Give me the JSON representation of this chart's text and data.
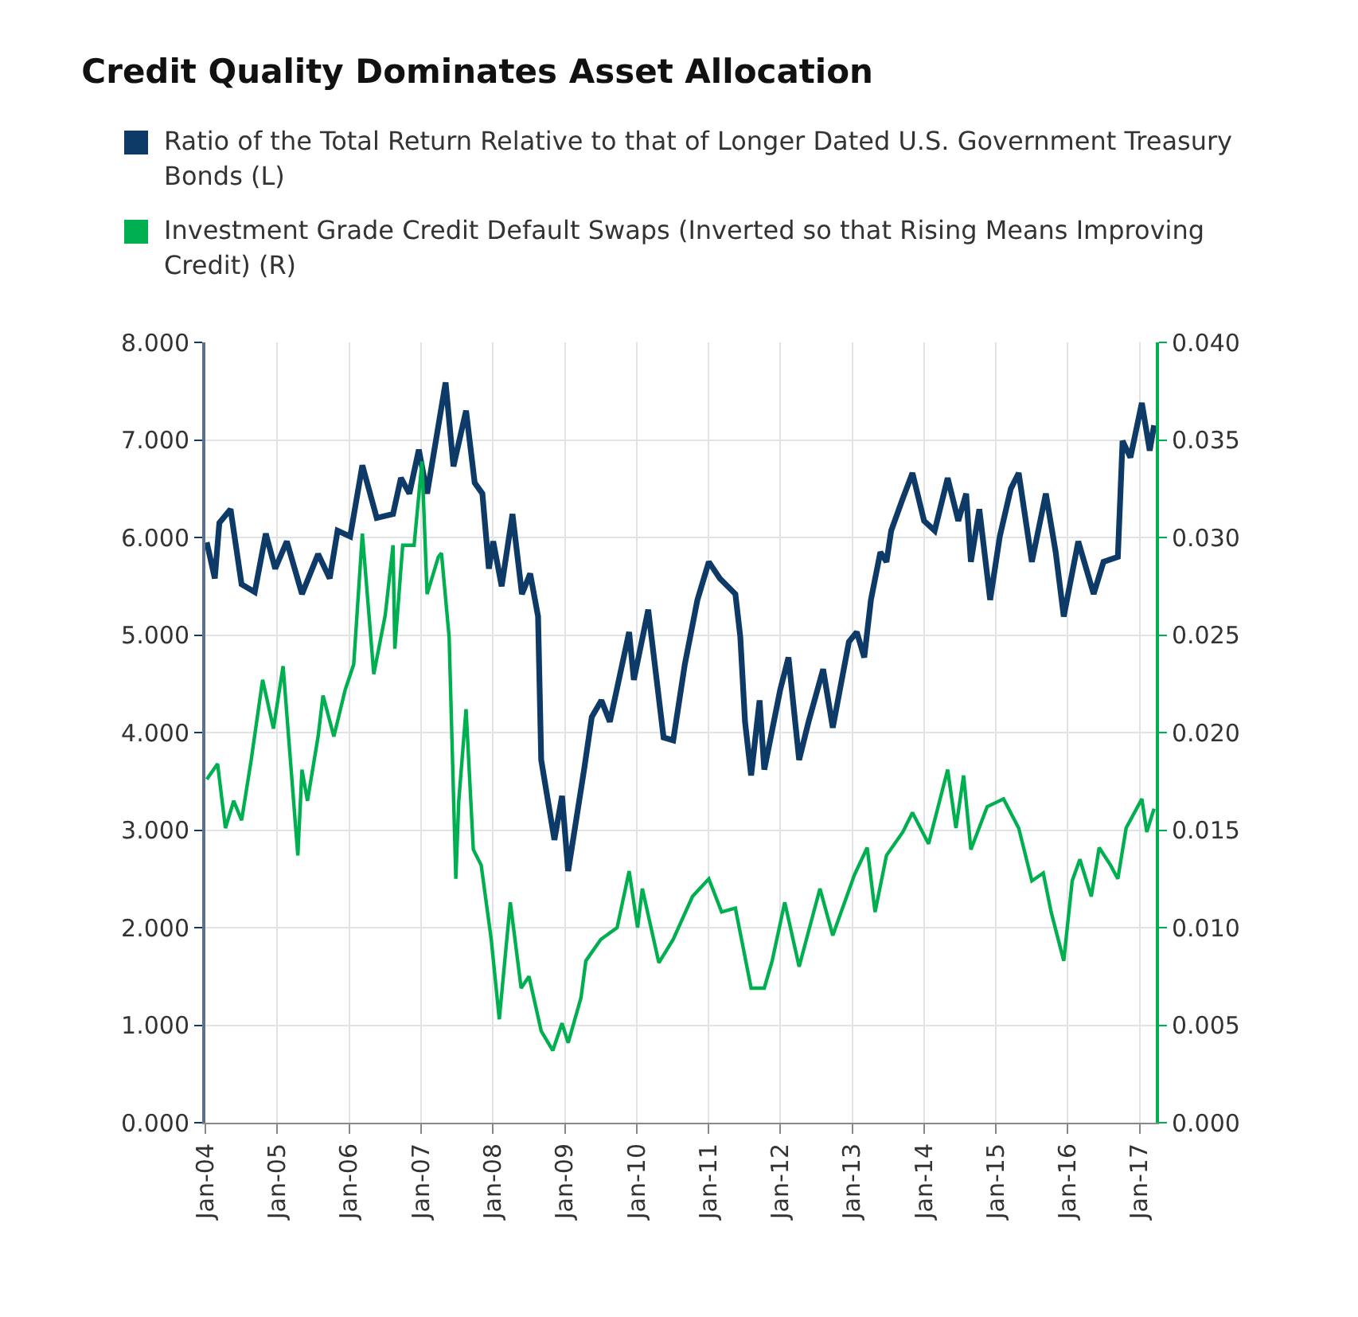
{
  "chart_data": {
    "type": "line",
    "title": "Credit Quality Dominates Asset Allocation",
    "xlim": [
      "2004-01-01",
      "2017-03-24"
    ],
    "xticks": [
      {
        "value": "2004-01-01",
        "label": "Jan-04"
      },
      {
        "value": "2005-01-01",
        "label": "Jan-05"
      },
      {
        "value": "2006-01-01",
        "label": "Jan-06"
      },
      {
        "value": "2007-01-01",
        "label": "Jan-07"
      },
      {
        "value": "2008-01-01",
        "label": "Jan-08"
      },
      {
        "value": "2009-01-01",
        "label": "Jan-09"
      },
      {
        "value": "2010-01-01",
        "label": "Jan-10"
      },
      {
        "value": "2011-01-01",
        "label": "Jan-11"
      },
      {
        "value": "2012-01-01",
        "label": "Jan-12"
      },
      {
        "value": "2013-01-01",
        "label": "Jan-13"
      },
      {
        "value": "2014-01-01",
        "label": "Jan-14"
      },
      {
        "value": "2015-01-01",
        "label": "Jan-15"
      },
      {
        "value": "2016-01-01",
        "label": "Jan-16"
      },
      {
        "value": "2017-01-01",
        "label": "Jan-17"
      }
    ],
    "ylim": [
      0,
      8
    ],
    "yticks": [
      {
        "value": 0,
        "label": "0.000"
      },
      {
        "value": 1,
        "label": "1.000"
      },
      {
        "value": 2,
        "label": "2.000"
      },
      {
        "value": 3,
        "label": "3.000"
      },
      {
        "value": 4,
        "label": "4.000"
      },
      {
        "value": 5,
        "label": "5.000"
      },
      {
        "value": 6,
        "label": "6.000"
      },
      {
        "value": 7,
        "label": "7.000"
      },
      {
        "value": 8,
        "label": "8.000"
      }
    ],
    "y2lim": [
      0,
      0.04
    ],
    "y2ticks": [
      {
        "value": 0,
        "label": "0.000"
      },
      {
        "value": 0.005,
        "label": "0.005"
      },
      {
        "value": 0.01,
        "label": "0.010"
      },
      {
        "value": 0.015,
        "label": "0.015"
      },
      {
        "value": 0.02,
        "label": "0.020"
      },
      {
        "value": 0.025,
        "label": "0.025"
      },
      {
        "value": 0.03,
        "label": "0.030"
      },
      {
        "value": 0.035,
        "label": "0.035"
      },
      {
        "value": 0.04,
        "label": "0.040"
      }
    ],
    "grid": true,
    "legend": "top",
    "series": [
      {
        "name": "Ratio of the Total Return Relative to that of Longer Dated U.S. Government Treasury Bonds (L)",
        "color": "#0d3a66",
        "x": [
          "2004-01-08",
          "2004-02-18",
          "2004-03-12",
          "2004-05-08",
          "2004-07-03",
          "2004-09-08",
          "2004-11-03",
          "2004-12-21",
          "2005-02-18",
          "2005-05-06",
          "2005-07-27",
          "2005-09-24",
          "2005-11-03",
          "2006-01-06",
          "2006-03-09",
          "2006-05-21",
          "2006-08-12",
          "2006-09-21",
          "2006-11-03",
          "2006-12-21",
          "2007-02-01",
          "2007-05-06",
          "2007-06-15",
          "2007-08-18",
          "2007-10-01",
          "2007-11-09",
          "2007-12-12",
          "2008-01-03",
          "2008-02-15",
          "2008-04-10",
          "2008-05-28",
          "2008-07-09",
          "2008-08-18",
          "2008-09-03",
          "2008-11-09",
          "2008-12-18",
          "2009-01-18",
          "2009-04-09",
          "2009-05-18",
          "2009-07-06",
          "2009-08-18",
          "2009-11-24",
          "2009-12-18",
          "2010-03-01",
          "2010-05-18",
          "2010-07-06",
          "2010-09-03",
          "2010-11-06",
          "2011-01-03",
          "2011-02-28",
          "2011-05-18",
          "2011-06-12",
          "2011-07-06",
          "2011-08-06",
          "2011-09-18",
          "2011-10-12",
          "2012-01-01",
          "2012-02-12",
          "2012-04-06",
          "2012-05-24",
          "2012-08-06",
          "2012-09-24",
          "2012-12-15",
          "2013-01-24",
          "2013-03-03",
          "2013-04-06",
          "2013-05-24",
          "2013-06-24",
          "2013-07-18",
          "2013-09-15",
          "2013-11-03",
          "2014-01-01",
          "2014-02-24",
          "2014-05-01",
          "2014-06-24",
          "2014-08-03",
          "2014-08-27",
          "2014-10-09",
          "2014-12-03",
          "2015-01-21",
          "2015-03-18",
          "2015-04-27",
          "2015-07-03",
          "2015-09-12",
          "2015-11-01",
          "2015-12-12",
          "2016-02-24",
          "2016-05-12",
          "2016-07-01",
          "2016-09-12",
          "2016-10-06",
          "2016-11-15",
          "2017-01-12",
          "2017-02-21",
          "2017-03-15"
        ],
        "values": [
          5.95,
          5.58,
          6.15,
          6.29,
          5.52,
          5.44,
          6.04,
          5.68,
          5.96,
          5.42,
          5.83,
          5.58,
          6.07,
          6.01,
          6.74,
          6.2,
          6.24,
          6.61,
          6.45,
          6.9,
          6.45,
          7.59,
          6.73,
          7.3,
          6.56,
          6.45,
          5.68,
          5.96,
          5.5,
          6.24,
          5.42,
          5.63,
          5.19,
          3.72,
          2.9,
          3.35,
          2.58,
          3.62,
          4.16,
          4.33,
          4.11,
          5.03,
          4.54,
          5.26,
          3.95,
          3.92,
          4.7,
          5.36,
          5.75,
          5.58,
          5.42,
          4.98,
          4.11,
          3.56,
          4.33,
          3.62,
          4.44,
          4.77,
          3.72,
          4.11,
          4.65,
          4.05,
          4.93,
          5.03,
          4.77,
          5.36,
          5.85,
          5.75,
          6.07,
          6.4,
          6.66,
          6.17,
          6.07,
          6.61,
          6.17,
          6.45,
          5.75,
          6.29,
          5.36,
          6.01,
          6.5,
          6.66,
          5.75,
          6.45,
          5.85,
          5.19,
          5.96,
          5.42,
          5.75,
          5.8,
          6.99,
          6.82,
          7.38,
          6.89,
          7.15
        ]
      },
      {
        "name": "Investment Grade Credit Default Swaps (Inverted so that Rising Means Improving Credit) (R)",
        "color": "#00b050",
        "axis": "y2",
        "x": [
          "2004-01-08",
          "2004-03-03",
          "2004-04-12",
          "2004-05-24",
          "2004-07-03",
          "2004-08-21",
          "2004-10-18",
          "2004-12-12",
          "2005-01-30",
          "2005-04-15",
          "2005-05-06",
          "2005-06-03",
          "2005-07-27",
          "2005-08-21",
          "2005-10-15",
          "2005-12-12",
          "2006-01-24",
          "2006-03-09",
          "2006-05-06",
          "2006-07-03",
          "2006-08-12",
          "2006-08-21",
          "2006-09-30",
          "2006-11-27",
          "2007-01-06",
          "2007-02-01",
          "2007-03-30",
          "2007-04-15",
          "2007-05-24",
          "2007-06-27",
          "2007-07-12",
          "2007-08-18",
          "2007-09-24",
          "2007-11-03",
          "2007-12-24",
          "2008-02-03",
          "2008-03-30",
          "2008-05-24",
          "2008-07-03",
          "2008-09-03",
          "2008-11-01",
          "2008-12-18",
          "2009-01-18",
          "2009-03-24",
          "2009-04-18",
          "2009-07-03",
          "2009-09-24",
          "2009-11-24",
          "2010-01-06",
          "2010-01-30",
          "2010-04-24",
          "2010-07-06",
          "2010-10-12",
          "2011-01-03",
          "2011-03-09",
          "2011-05-18",
          "2011-08-06",
          "2011-10-12",
          "2011-11-21",
          "2012-01-24",
          "2012-04-06",
          "2012-07-21",
          "2012-09-24",
          "2013-01-12",
          "2013-03-18",
          "2013-04-27",
          "2013-06-24",
          "2013-09-15",
          "2013-11-03",
          "2014-01-24",
          "2014-05-01",
          "2014-06-12",
          "2014-07-21",
          "2014-08-27",
          "2014-11-18",
          "2015-02-09",
          "2015-04-27",
          "2015-07-03",
          "2015-08-30",
          "2015-10-09",
          "2015-12-12",
          "2016-01-24",
          "2016-03-03",
          "2016-04-30",
          "2016-06-09",
          "2016-08-06",
          "2016-09-12",
          "2016-10-24",
          "2017-01-12",
          "2017-02-06",
          "2017-03-15"
        ],
        "values": [
          0.0176,
          0.0184,
          0.0151,
          0.0165,
          0.0155,
          0.0186,
          0.0227,
          0.0202,
          0.0234,
          0.0137,
          0.0181,
          0.0165,
          0.0198,
          0.0219,
          0.0198,
          0.0222,
          0.0235,
          0.0302,
          0.023,
          0.026,
          0.0296,
          0.0243,
          0.0296,
          0.0296,
          0.0339,
          0.0271,
          0.029,
          0.0292,
          0.0249,
          0.0125,
          0.0165,
          0.0212,
          0.014,
          0.0132,
          0.0094,
          0.0053,
          0.0113,
          0.0069,
          0.0075,
          0.0047,
          0.0037,
          0.0051,
          0.0041,
          0.0064,
          0.0083,
          0.0094,
          0.01,
          0.0129,
          0.01,
          0.012,
          0.0082,
          0.0094,
          0.0116,
          0.0125,
          0.0108,
          0.011,
          0.0069,
          0.0069,
          0.0083,
          0.0113,
          0.008,
          0.012,
          0.0096,
          0.0127,
          0.0141,
          0.0108,
          0.0137,
          0.0149,
          0.0159,
          0.0143,
          0.0181,
          0.0151,
          0.0178,
          0.014,
          0.0162,
          0.0166,
          0.0151,
          0.0124,
          0.0128,
          0.0108,
          0.0083,
          0.0124,
          0.0135,
          0.0116,
          0.0141,
          0.0132,
          0.0125,
          0.0151,
          0.0166,
          0.0149,
          0.0161
        ]
      }
    ]
  }
}
